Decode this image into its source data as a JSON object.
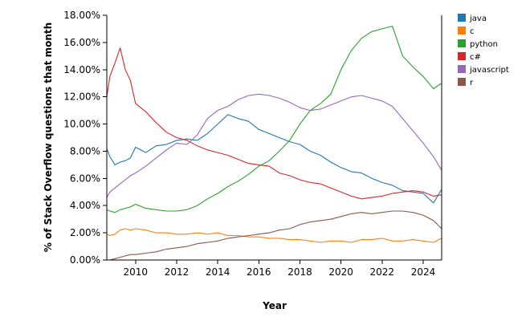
{
  "chart_data": {
    "type": "line",
    "xlabel": "Year",
    "ylabel": "% of Stack Overflow questions that month",
    "xlim": [
      2008.6,
      2024.9
    ],
    "ylim": [
      0,
      18
    ],
    "x_ticks": [
      "2010",
      "2012",
      "2014",
      "2016",
      "2018",
      "2020",
      "2022",
      "2024"
    ],
    "y_ticks": [
      "0.00%",
      "2.00%",
      "4.00%",
      "6.00%",
      "8.00%",
      "10.00%",
      "12.00%",
      "14.00%",
      "16.00%",
      "18.00%"
    ],
    "grid": false,
    "legend_position": "right",
    "x": [
      2008.6,
      2008.75,
      2009.0,
      2009.25,
      2009.5,
      2009.75,
      2010.0,
      2010.5,
      2011.0,
      2011.5,
      2012.0,
      2012.5,
      2013.0,
      2013.5,
      2014.0,
      2014.5,
      2015.0,
      2015.5,
      2016.0,
      2016.5,
      2017.0,
      2017.5,
      2018.0,
      2018.5,
      2019.0,
      2019.5,
      2020.0,
      2020.5,
      2021.0,
      2021.5,
      2022.0,
      2022.5,
      2023.0,
      2023.5,
      2024.0,
      2024.5,
      2024.9
    ],
    "series": [
      {
        "name": "java",
        "color": "#1f77b4",
        "values": [
          8.2,
          7.6,
          7.0,
          7.2,
          7.3,
          7.5,
          8.3,
          7.9,
          8.4,
          8.5,
          8.8,
          8.9,
          8.8,
          9.3,
          10.0,
          10.7,
          10.4,
          10.2,
          9.6,
          9.3,
          9.0,
          8.7,
          8.5,
          8.0,
          7.7,
          7.2,
          6.8,
          6.5,
          6.4,
          6.0,
          5.7,
          5.5,
          5.1,
          5.0,
          4.9,
          4.2,
          5.2
        ]
      },
      {
        "name": "c",
        "color": "#ff7f0e",
        "values": [
          1.9,
          1.8,
          1.9,
          2.2,
          2.3,
          2.2,
          2.3,
          2.2,
          2.0,
          2.0,
          1.9,
          1.9,
          2.0,
          1.9,
          2.0,
          1.8,
          1.8,
          1.7,
          1.7,
          1.6,
          1.6,
          1.5,
          1.5,
          1.4,
          1.3,
          1.4,
          1.4,
          1.3,
          1.5,
          1.5,
          1.6,
          1.4,
          1.4,
          1.5,
          1.4,
          1.3,
          1.6
        ]
      },
      {
        "name": "python",
        "color": "#2ca02c",
        "values": [
          3.7,
          3.6,
          3.5,
          3.7,
          3.8,
          3.9,
          4.1,
          3.8,
          3.7,
          3.6,
          3.6,
          3.7,
          4.0,
          4.5,
          4.9,
          5.4,
          5.8,
          6.3,
          6.9,
          7.3,
          8.0,
          8.8,
          10.0,
          11.0,
          11.5,
          12.2,
          14.0,
          15.4,
          16.3,
          16.8,
          17.0,
          17.2,
          15.0,
          14.2,
          13.5,
          12.6,
          13.0
        ]
      },
      {
        "name": "c#",
        "color": "#d62728",
        "values": [
          12.0,
          13.5,
          14.5,
          15.6,
          14.0,
          13.2,
          11.5,
          10.9,
          10.1,
          9.4,
          9.0,
          8.8,
          8.4,
          8.1,
          7.9,
          7.7,
          7.4,
          7.1,
          7.0,
          6.9,
          6.4,
          6.2,
          5.9,
          5.7,
          5.6,
          5.3,
          5.0,
          4.7,
          4.5,
          4.6,
          4.7,
          4.9,
          5.0,
          5.1,
          5.0,
          4.7,
          4.8
        ]
      },
      {
        "name": "javascript",
        "color": "#9467bd",
        "values": [
          4.6,
          5.0,
          5.3,
          5.6,
          5.9,
          6.2,
          6.4,
          6.9,
          7.5,
          8.1,
          8.6,
          8.5,
          9.2,
          10.4,
          11.0,
          11.3,
          11.8,
          12.1,
          12.2,
          12.1,
          11.9,
          11.6,
          11.2,
          11.0,
          11.1,
          11.4,
          11.7,
          12.0,
          12.1,
          11.9,
          11.7,
          11.3,
          10.4,
          9.5,
          8.6,
          7.6,
          6.6
        ]
      },
      {
        "name": "r",
        "color": "#8c564b",
        "values": [
          0.0,
          0.0,
          0.1,
          0.2,
          0.3,
          0.4,
          0.4,
          0.5,
          0.6,
          0.8,
          0.9,
          1.0,
          1.2,
          1.3,
          1.4,
          1.6,
          1.7,
          1.8,
          1.9,
          2.0,
          2.2,
          2.3,
          2.6,
          2.8,
          2.9,
          3.0,
          3.2,
          3.4,
          3.5,
          3.4,
          3.5,
          3.6,
          3.6,
          3.5,
          3.3,
          2.9,
          2.3
        ]
      }
    ]
  }
}
